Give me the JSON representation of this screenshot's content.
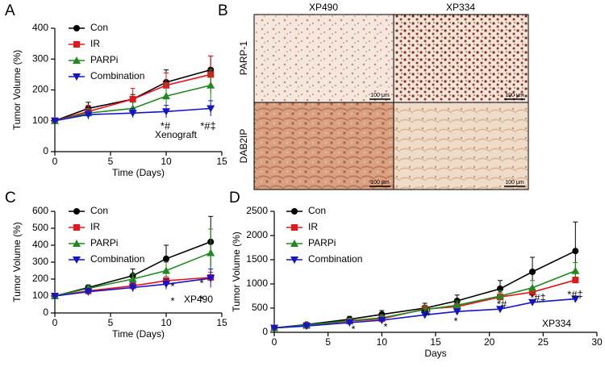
{
  "panel_labels": [
    "A",
    "B",
    "C",
    "D"
  ],
  "panel_b": {
    "columns": [
      "XP490",
      "XP334"
    ],
    "rows": [
      "PARP-1",
      "DAB2IP"
    ],
    "scale_bar": "100 μm"
  },
  "chart_data": [
    {
      "type": "line",
      "xlabel": "Time (Days)",
      "ylabel": "Tumor Volume (%)",
      "inset_label": "Xenograft",
      "x": [
        0,
        3,
        7,
        10,
        14
      ],
      "xlim": [
        0,
        15
      ],
      "xticks": [
        0,
        5,
        10,
        15
      ],
      "ylim": [
        0,
        400
      ],
      "yticks": [
        0,
        100,
        200,
        300,
        400
      ],
      "legend": "upper left",
      "series": [
        {
          "name": "Con",
          "color": "#000000",
          "marker": "circle",
          "values": [
            100,
            140,
            170,
            225,
            265
          ],
          "errors": [
            0,
            20,
            15,
            40,
            45
          ]
        },
        {
          "name": "IR",
          "color": "#e8141c",
          "marker": "square",
          "values": [
            100,
            130,
            170,
            215,
            250
          ],
          "errors": [
            0,
            20,
            35,
            40,
            60
          ]
        },
        {
          "name": "PARPi",
          "color": "#1f8a1f",
          "marker": "triangle",
          "values": [
            100,
            125,
            140,
            180,
            215
          ],
          "errors": [
            0,
            15,
            20,
            40,
            50
          ]
        },
        {
          "name": "Combination",
          "color": "#1414c8",
          "marker": "triangle-down",
          "values": [
            100,
            120,
            125,
            130,
            140
          ],
          "errors": [
            0,
            15,
            15,
            20,
            25
          ]
        }
      ],
      "annotations": [
        {
          "text": "*#",
          "color": "#1414c8"
        },
        {
          "text": "*#‡",
          "color": "#1414c8"
        }
      ]
    },
    {
      "type": "line",
      "xlabel": "Time (Days)",
      "ylabel": "Tumor Volume (%)",
      "inset_label": "XP490",
      "x": [
        0,
        3,
        7,
        10,
        14
      ],
      "xlim": [
        0,
        15
      ],
      "xticks": [
        0,
        5,
        10,
        15
      ],
      "ylim": [
        0,
        600
      ],
      "yticks": [
        0,
        100,
        200,
        300,
        400,
        500,
        600
      ],
      "legend": "upper left",
      "series": [
        {
          "name": "Con",
          "color": "#000000",
          "marker": "circle",
          "values": [
            100,
            150,
            220,
            320,
            420
          ],
          "errors": [
            0,
            15,
            40,
            80,
            150
          ]
        },
        {
          "name": "IR",
          "color": "#e8141c",
          "marker": "square",
          "values": [
            100,
            130,
            160,
            190,
            210
          ],
          "errors": [
            0,
            15,
            20,
            25,
            30
          ]
        },
        {
          "name": "PARPi",
          "color": "#1f8a1f",
          "marker": "triangle",
          "values": [
            100,
            145,
            200,
            250,
            355
          ],
          "errors": [
            0,
            15,
            30,
            50,
            140
          ]
        },
        {
          "name": "Combination",
          "color": "#1414c8",
          "marker": "triangle-down",
          "values": [
            100,
            125,
            150,
            170,
            205
          ],
          "errors": [
            0,
            20,
            25,
            30,
            55
          ]
        }
      ],
      "annotations": [
        {
          "text": "*",
          "color": "#e8141c"
        },
        {
          "text": "*",
          "color": "#1414c8"
        },
        {
          "text": "*",
          "color": "#e8141c"
        },
        {
          "text": "*",
          "color": "#1414c8"
        }
      ]
    },
    {
      "type": "line",
      "xlabel": "Days",
      "ylabel": "Tumor Volume (%)",
      "inset_label": "XP334",
      "x": [
        0,
        3,
        7,
        10,
        14,
        17,
        21,
        24,
        28
      ],
      "xlim": [
        0,
        30
      ],
      "xticks": [
        0,
        5,
        10,
        15,
        20,
        25,
        30
      ],
      "ylim": [
        0,
        2500
      ],
      "yticks": [
        0,
        500,
        1000,
        1500,
        2000,
        2500
      ],
      "legend": "upper left",
      "series": [
        {
          "name": "Con",
          "color": "#000000",
          "marker": "circle",
          "values": [
            90,
            160,
            270,
            370,
            500,
            650,
            900,
            1250,
            1680
          ],
          "errors": [
            0,
            30,
            60,
            80,
            100,
            120,
            170,
            300,
            600
          ]
        },
        {
          "name": "IR",
          "color": "#e8141c",
          "marker": "square",
          "values": [
            90,
            140,
            230,
            280,
            480,
            530,
            730,
            830,
            1080
          ],
          "errors": [
            0,
            20,
            40,
            50,
            80,
            70,
            90,
            100,
            60
          ]
        },
        {
          "name": "PARPi",
          "color": "#1f8a1f",
          "marker": "triangle",
          "values": [
            90,
            150,
            240,
            300,
            470,
            560,
            750,
            920,
            1270
          ],
          "errors": [
            0,
            25,
            50,
            60,
            90,
            90,
            110,
            150,
            170
          ]
        },
        {
          "name": "Combination",
          "color": "#1414c8",
          "marker": "triangle-down",
          "values": [
            90,
            130,
            200,
            250,
            360,
            430,
            480,
            620,
            690
          ],
          "errors": [
            0,
            20,
            30,
            40,
            60,
            50,
            40,
            40,
            30
          ]
        }
      ],
      "annotations": [
        {
          "text": "*",
          "color": "#1414c8"
        },
        {
          "text": "*",
          "color": "#1414c8"
        },
        {
          "text": "*#",
          "color": "#1414c8"
        },
        {
          "text": "*",
          "color": "#1414c8"
        },
        {
          "text": "*#",
          "color": "#1414c8"
        },
        {
          "text": "*#‡",
          "color": "#1414c8"
        },
        {
          "text": "*#‡",
          "color": "#1414c8"
        }
      ]
    }
  ]
}
